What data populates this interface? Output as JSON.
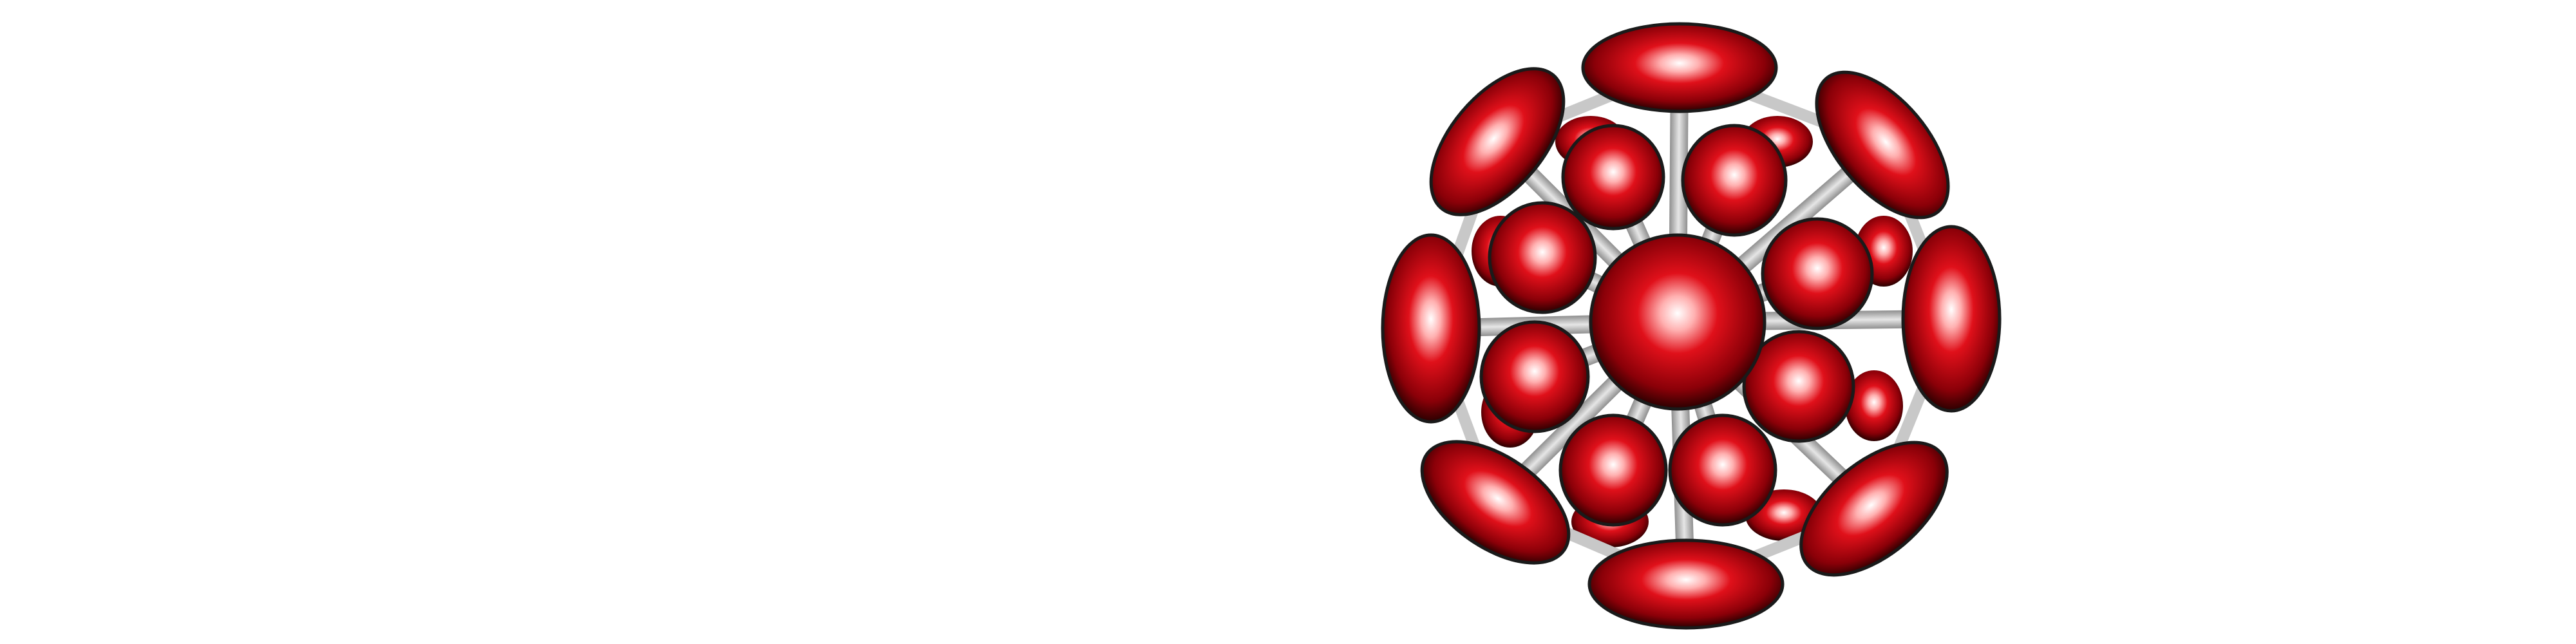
{
  "scene": {
    "subject": "molecular-cluster",
    "background_color": "#ffffff",
    "sphere_color": "#e0101a",
    "sphere_highlight_color": "#ffffff",
    "sphere_shadow_color": "#2a0000",
    "bond_color": "#c8c8c8",
    "outline_color": "#1a1a1a"
  }
}
